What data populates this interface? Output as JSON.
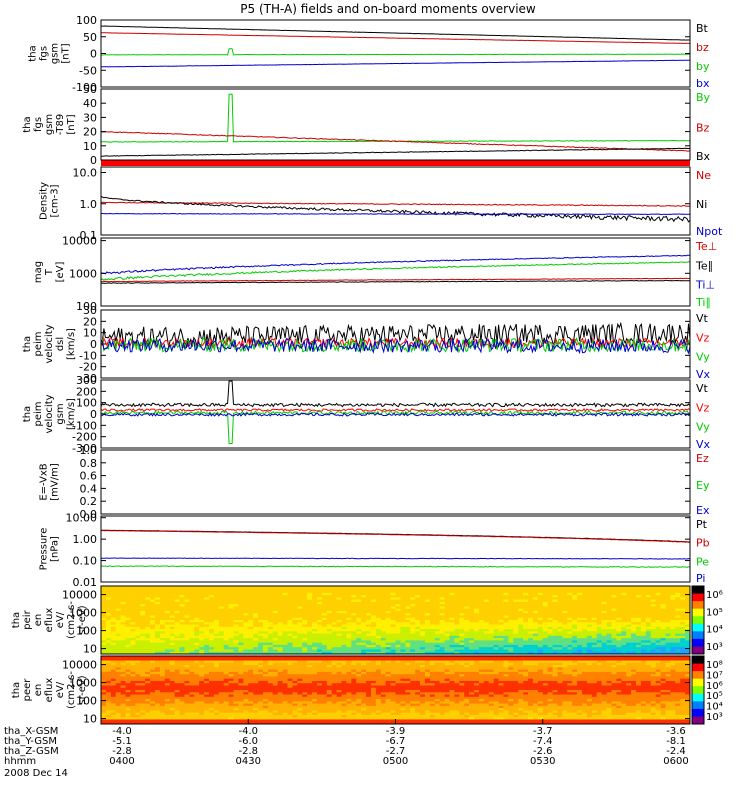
{
  "title": "P5 (TH-A) fields and on-board moments overview",
  "chart_data": [
    {
      "id": "fgs_mag",
      "type": "line",
      "ylabel": [
        "tha",
        "fgs",
        "gsm",
        "[nT]"
      ],
      "ylim": [
        -100,
        100
      ],
      "yticks": [
        "100",
        "50",
        "0",
        "-50",
        "-100"
      ],
      "series": [
        {
          "name": "Bt",
          "color": "#000000",
          "start": 82,
          "end": 40,
          "noise": 0.3
        },
        {
          "name": "bz",
          "color": "#cc0000",
          "start": 62,
          "end": 30,
          "noise": 0.3
        },
        {
          "name": "by",
          "color": "#00cc00",
          "start": -4,
          "end": -2,
          "noise": 0.5,
          "spike": [
            0.22,
            14
          ]
        },
        {
          "name": "bx",
          "color": "#0000cc",
          "start": -40,
          "end": -20,
          "noise": 0.3
        }
      ]
    },
    {
      "id": "fgs_dbz",
      "type": "line",
      "ylabel": [
        "tha",
        "fgs",
        "gsm",
        "-T89",
        "[nT]"
      ],
      "ylim": [
        -5,
        50
      ],
      "yticks": [
        "50",
        "40",
        "30",
        "20",
        "10",
        "0"
      ],
      "series": [
        {
          "name": "By",
          "color": "#00cc00",
          "start": 9,
          "end": 10,
          "noise": 0.2,
          "spike": [
            0.22,
            46
          ]
        },
        {
          "name": "Bz",
          "color": "#cc0000",
          "start": 17,
          "end": 2,
          "noise": 0.3
        },
        {
          "name": "Bx",
          "color": "#000000",
          "start": -2,
          "end": 4,
          "noise": 0.2
        }
      ]
    },
    {
      "id": "density",
      "type": "line",
      "log": true,
      "ylabel": [
        "Density",
        "[cm-3]"
      ],
      "ylim": [
        0.1,
        15
      ],
      "yticks": [
        "10.0",
        "1.0",
        "0.1"
      ],
      "series": [
        {
          "name": "Ne",
          "color": "#cc0000",
          "start": 1.1,
          "end": 0.85,
          "noise": 0.03
        },
        {
          "name": "Ni",
          "color": "#000000",
          "start": 1.7,
          "end": 0.32,
          "noise": 0.06
        },
        {
          "name": "Npot",
          "color": "#0000cc",
          "start": 0.48,
          "end": 0.46,
          "noise": 0.01
        }
      ]
    },
    {
      "id": "temperature",
      "type": "line",
      "log": true,
      "ylabel": [
        "mag",
        "T",
        "[eV]"
      ],
      "ylim": [
        100,
        12000
      ],
      "yticks": [
        "10000",
        "1000",
        "100"
      ],
      "series": [
        {
          "name": "Te⊥",
          "color": "#cc0000",
          "start": 560,
          "end": 700,
          "noise": 10
        },
        {
          "name": "Te∥",
          "color": "#000000",
          "start": 500,
          "end": 600,
          "noise": 10
        },
        {
          "name": "Ti⊥",
          "color": "#0000cc",
          "start": 1000,
          "end": 3500,
          "noise": 80
        },
        {
          "name": "Ti∥",
          "color": "#00cc00",
          "start": 650,
          "end": 2200,
          "noise": 60
        }
      ]
    },
    {
      "id": "peim_dsl",
      "type": "line",
      "ylabel": [
        "tha",
        "peim",
        "velocity",
        "dsl",
        "[km/s]"
      ],
      "ylim": [
        -30,
        30
      ],
      "yticks": [
        "30",
        "20",
        "10",
        "0",
        "-10",
        "-20",
        "-30"
      ],
      "series": [
        {
          "name": "Vt",
          "color": "#000000",
          "start": 6,
          "end": 10,
          "noise": 9
        },
        {
          "name": "Vz",
          "color": "#ff0000",
          "start": 1,
          "end": 1,
          "noise": 4
        },
        {
          "name": "Vy",
          "color": "#00cc00",
          "start": -1,
          "end": -1,
          "noise": 6
        },
        {
          "name": "Vx",
          "color": "#0000cc",
          "start": -1,
          "end": -2,
          "noise": 6
        }
      ]
    },
    {
      "id": "peim_gsm",
      "type": "line",
      "ylabel": [
        "tha",
        "peim",
        "velocity",
        "gsm",
        "[km/s]"
      ],
      "ylim": [
        -300,
        300
      ],
      "yticks": [
        "300",
        "200",
        "100",
        "0",
        "-100",
        "-200",
        "-300"
      ],
      "series": [
        {
          "name": "Vt",
          "color": "#000000",
          "start": 80,
          "end": 80,
          "noise": 15,
          "spike": [
            0.22,
            290
          ]
        },
        {
          "name": "Vz",
          "color": "#ff0000",
          "start": 35,
          "end": 35,
          "noise": 10
        },
        {
          "name": "Vy",
          "color": "#00cc00",
          "start": 10,
          "end": 10,
          "noise": 15,
          "spike": [
            0.22,
            -260
          ]
        },
        {
          "name": "Vx",
          "color": "#0000cc",
          "start": -5,
          "end": -5,
          "noise": 12
        }
      ]
    },
    {
      "id": "efield",
      "type": "line",
      "ylabel": [
        "E=-VxB",
        "[mV/m]"
      ],
      "ylim": [
        0,
        1
      ],
      "yticks": [
        "1.0",
        "0.8",
        "0.6",
        "0.4",
        "0.2",
        "0.0"
      ],
      "series": [
        {
          "name": "Ez",
          "color": "#cc0000"
        },
        {
          "name": "Ey",
          "color": "#00cc00"
        },
        {
          "name": "Ex",
          "color": "#0000cc"
        }
      ]
    },
    {
      "id": "pressure",
      "type": "line",
      "log": true,
      "ylabel": [
        "Pressure",
        "[nPa]"
      ],
      "ylim": [
        0.01,
        12
      ],
      "yticks": [
        "10.00",
        "1.00",
        "0.10",
        "0.01"
      ],
      "series": [
        {
          "name": "Pt",
          "color": "#000000",
          "start": 2.6,
          "end": 0.75,
          "noise": 0.02
        },
        {
          "name": "Pb",
          "color": "#cc0000",
          "start": 2.5,
          "end": 0.72,
          "noise": 0.02
        },
        {
          "name": "Pe",
          "color": "#00cc00",
          "start": 0.055,
          "end": 0.05,
          "noise": 0.002
        },
        {
          "name": "Pi",
          "color": "#0000cc",
          "start": 0.13,
          "end": 0.12,
          "noise": 0.003
        }
      ]
    },
    {
      "id": "peir_spec",
      "type": "heatmap",
      "log": true,
      "ylabel": [
        "tha",
        "peir",
        "en",
        "eflux",
        "eV/",
        "(cm2-s-",
        "sr-eV)"
      ],
      "ylim": [
        5,
        30000
      ],
      "yticks": [
        "10000",
        "1000",
        "100",
        "10"
      ],
      "colorbar": {
        "labels": [
          "10⁶",
          "10⁵",
          "10⁴",
          "10³"
        ]
      }
    },
    {
      "id": "peer_spec",
      "type": "heatmap",
      "log": true,
      "ylabel": [
        "tha",
        "peer",
        "en",
        "eflux",
        "eV/",
        "(cm2-s-",
        "sr-eV)"
      ],
      "ylim": [
        5,
        30000
      ],
      "yticks": [
        "10000",
        "1000",
        "100",
        "10"
      ],
      "colorbar": {
        "labels": [
          "10⁸",
          "10⁷",
          "10⁶",
          "10⁵",
          "10⁴",
          "10³"
        ]
      }
    }
  ],
  "x_axis": {
    "row_labels": [
      "tha_X-GSM",
      "tha_Y-GSM",
      "tha_Z-GSM",
      "hhmm",
      "2008 Dec 14"
    ],
    "ticks": [
      {
        "x": "-4.0",
        "y": "-5.1",
        "z": "-2.8",
        "t": "0400"
      },
      {
        "x": "-4.0",
        "y": "-6.0",
        "z": "-2.8",
        "t": "0430"
      },
      {
        "x": "-3.9",
        "y": "-6.7",
        "z": "-2.7",
        "t": "0500"
      },
      {
        "x": "-3.7",
        "y": "-7.4",
        "z": "-2.6",
        "t": "0530"
      },
      {
        "x": "-3.6",
        "y": "-8.1",
        "z": "-2.4",
        "t": "0600"
      }
    ]
  }
}
